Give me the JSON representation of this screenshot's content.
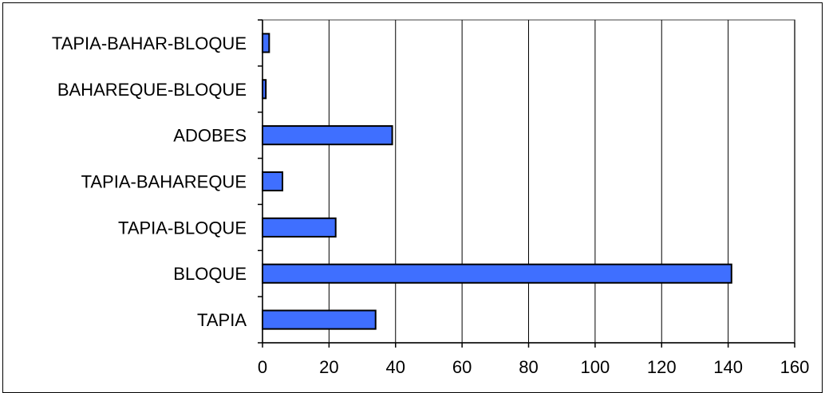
{
  "chart_data": {
    "type": "bar",
    "orientation": "horizontal",
    "categories": [
      "TAPIA",
      "BLOQUE",
      "TAPIA-BLOQUE",
      "TAPIA-BAHAREQUE",
      "ADOBES",
      "BAHAREQUE-BLOQUE",
      "TAPIA-BAHAR-BLOQUE"
    ],
    "values": [
      34,
      141,
      22,
      6,
      39,
      1,
      2
    ],
    "title": "",
    "xlabel": "",
    "ylabel": "",
    "xlim": [
      0,
      160
    ],
    "x_ticks": [
      0,
      20,
      40,
      60,
      80,
      100,
      120,
      140,
      160
    ],
    "x_tick_labels": [
      "0",
      "20",
      "40",
      "60",
      "80",
      "100",
      "120",
      "140",
      "160"
    ],
    "grid": "vertical",
    "legend": "none",
    "bar_color": "#3f6fff",
    "bar_edge_color": "#000000",
    "grid_color": "#000000"
  }
}
